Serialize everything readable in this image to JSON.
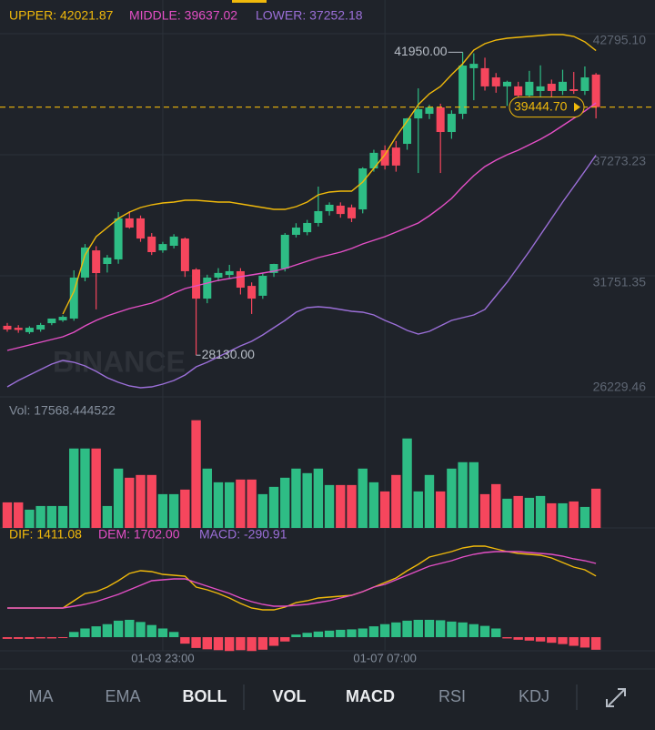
{
  "chart_data": [
    {
      "type": "candlestick",
      "up_color": "#2ebd85",
      "down_color": "#f6465d",
      "categories": [
        null,
        null,
        null,
        null,
        null,
        null,
        null,
        null,
        null,
        null,
        null,
        null,
        null,
        null,
        "01-03 23:00",
        null,
        null,
        null,
        null,
        null,
        null,
        null,
        null,
        null,
        null,
        null,
        null,
        null,
        null,
        null,
        null,
        null,
        null,
        null,
        "01-07 07:00",
        null,
        null,
        null,
        null,
        null,
        null,
        null,
        null,
        null,
        null,
        null,
        null,
        null,
        null,
        null,
        null,
        null,
        null,
        null
      ],
      "candles": [
        [
          29470,
          29600,
          29200,
          29300
        ],
        [
          29380,
          29500,
          29150,
          29280
        ],
        [
          29180,
          29450,
          29100,
          29380
        ],
        [
          29300,
          29600,
          29200,
          29510
        ],
        [
          29590,
          29800,
          29500,
          29800
        ],
        [
          29720,
          29950,
          29650,
          29880
        ],
        [
          29800,
          32000,
          29700,
          31670
        ],
        [
          31670,
          33200,
          31500,
          33040
        ],
        [
          32910,
          33100,
          30220,
          31875
        ],
        [
          32290,
          32700,
          31900,
          32580
        ],
        [
          32500,
          34660,
          32300,
          34370
        ],
        [
          34370,
          34700,
          33900,
          33950
        ],
        [
          34370,
          34500,
          33300,
          33450
        ],
        [
          33540,
          33700,
          32700,
          32830
        ],
        [
          32910,
          33300,
          32800,
          33200
        ],
        [
          33120,
          33650,
          33000,
          33540
        ],
        [
          33450,
          33500,
          31700,
          31960
        ],
        [
          32040,
          32100,
          28130,
          30710
        ],
        [
          30710,
          31800,
          30500,
          31670
        ],
        [
          31670,
          32100,
          31500,
          31880
        ],
        [
          31790,
          32250,
          31650,
          31960
        ],
        [
          31960,
          32100,
          30900,
          31210
        ],
        [
          31290,
          31450,
          30010,
          30710
        ],
        [
          30840,
          31900,
          30700,
          31750
        ],
        [
          31880,
          32300,
          31700,
          32290
        ],
        [
          32080,
          33700,
          31950,
          33620
        ],
        [
          33620,
          34150,
          33500,
          33950
        ],
        [
          33740,
          34300,
          33600,
          34160
        ],
        [
          34160,
          35820,
          34000,
          34700
        ],
        [
          34700,
          35100,
          34500,
          34990
        ],
        [
          34950,
          35100,
          34400,
          34570
        ],
        [
          34870,
          35000,
          34200,
          34370
        ],
        [
          34780,
          36700,
          34600,
          36650
        ],
        [
          36650,
          37500,
          36500,
          37360
        ],
        [
          37480,
          37700,
          36600,
          36780
        ],
        [
          37600,
          37900,
          36500,
          36780
        ],
        [
          37770,
          38950,
          37500,
          38930
        ],
        [
          38930,
          40300,
          36440,
          39350
        ],
        [
          39140,
          39550,
          38900,
          39430
        ],
        [
          39430,
          39600,
          36440,
          38310
        ],
        [
          38310,
          39300,
          38000,
          39140
        ],
        [
          39140,
          41950,
          38900,
          41340
        ],
        [
          41220,
          41900,
          39760,
          41420
        ],
        [
          41220,
          41700,
          40200,
          40390
        ],
        [
          40800,
          41000,
          40100,
          40390
        ],
        [
          40390,
          40650,
          39500,
          40600
        ],
        [
          40390,
          40600,
          39700,
          39970
        ],
        [
          39970,
          41100,
          39600,
          40600
        ],
        [
          40180,
          41350,
          39900,
          40390
        ],
        [
          40510,
          40700,
          39900,
          40180
        ],
        [
          40180,
          41150,
          40000,
          40600
        ],
        [
          40260,
          41050,
          40050,
          40180
        ],
        [
          40180,
          41300,
          40000,
          40800
        ],
        [
          40930,
          41000,
          38930,
          39444.7
        ]
      ],
      "series": [
        {
          "name": "UPPER: 42021.87",
          "color": "#f0b90b",
          "values": [
            null,
            null,
            null,
            null,
            null,
            30007,
            31045,
            32706,
            33536,
            33951,
            34366,
            34657,
            34865,
            34990,
            35073,
            35114,
            35197,
            35197,
            35155,
            35114,
            35114,
            35031,
            34948,
            34865,
            34782,
            34782,
            34907,
            35114,
            35446,
            35570,
            35612,
            35612,
            36027,
            36650,
            37273,
            38103,
            38809,
            39556,
            40055,
            40387,
            40927,
            41425,
            42048,
            42338,
            42504,
            42587,
            42629,
            42671,
            42712,
            42753,
            42753,
            42671,
            42421,
            42021.87
          ]
        },
        {
          "name": "MIDDLE: 39637.02",
          "color": "#e44fc6",
          "values": [
            28346,
            28471,
            28595,
            28720,
            28844,
            28969,
            29176,
            29467,
            29716,
            29924,
            30090,
            30256,
            30381,
            30505,
            30713,
            30962,
            31169,
            31294,
            31419,
            31543,
            31626,
            31709,
            31792,
            31875,
            31958,
            32083,
            32249,
            32415,
            32581,
            32706,
            32830,
            32996,
            33204,
            33370,
            33536,
            33744,
            33951,
            34159,
            34491,
            34865,
            35280,
            35820,
            36318,
            36733,
            37024,
            37273,
            37481,
            37730,
            37979,
            38270,
            38602,
            38934,
            39266,
            39637.02
          ]
        },
        {
          "name": "LOWER: 37252.18",
          "color": "#9b6fd8",
          "values": [
            26685,
            26976,
            27225,
            27474,
            27723,
            27889,
            27806,
            27640,
            27391,
            27100,
            26893,
            26727,
            26644,
            26685,
            26810,
            26976,
            27225,
            27598,
            27806,
            28056,
            28305,
            28554,
            28761,
            29052,
            29384,
            29716,
            30090,
            30298,
            30339,
            30298,
            30215,
            30132,
            30090,
            29965,
            29716,
            29508,
            29259,
            29093,
            29218,
            29467,
            29716,
            29841,
            29965,
            30215,
            30837,
            31460,
            32166,
            32872,
            33620,
            34366,
            35114,
            35820,
            36525,
            37252.18
          ]
        }
      ],
      "ylim": [
        26187,
        44331
      ],
      "yticks": [
        {
          "value": 42795.1,
          "label": "42795.10"
        },
        37273.23,
        31751.35,
        26229.46
      ],
      "grid": true,
      "annotations": [
        {
          "value": 41950,
          "label": "41950.00"
        },
        {
          "value": 28130,
          "label": "28130.00"
        }
      ],
      "last_price": {
        "value": 39444.7,
        "label": "39444.70"
      },
      "watermark": "BINANCE"
    },
    {
      "type": "bar",
      "series": [
        {
          "name": "Vol: 17568.444522",
          "values": [
            11440,
            11440,
            8170,
            9810,
            9810,
            9810,
            35550,
            35550,
            35550,
            9810,
            26560,
            22470,
            23700,
            23700,
            15120,
            15120,
            17160,
            48210,
            26560,
            20430,
            20430,
            21660,
            21660,
            15120,
            18390,
            22470,
            26560,
            24520,
            26560,
            19200,
            19200,
            19200,
            26560,
            20430,
            16340,
            23700,
            40040,
            16340,
            23700,
            16340,
            26560,
            29420,
            29420,
            15120,
            19610,
            13080,
            14300,
            13480,
            14300,
            11030,
            11030,
            11850,
            9400,
            17568.444522
          ]
        }
      ],
      "ylim": [
        0,
        55000
      ]
    },
    {
      "type": "line",
      "up_color": "#2ebd85",
      "down_color": "#f6465d",
      "series": [
        {
          "name": "DIF: 1411.08",
          "color": "#f0b90b",
          "values": [
            672,
            672,
            672,
            672,
            672,
            672,
            840,
            1008,
            1050,
            1155,
            1302,
            1470,
            1533,
            1512,
            1449,
            1428,
            1407,
            1155,
            1092,
            1008,
            903,
            777,
            672,
            630,
            630,
            693,
            798,
            840,
            903,
            924,
            945,
            966,
            1050,
            1155,
            1260,
            1365,
            1533,
            1680,
            1848,
            1911,
            1974,
            2058,
            2100,
            2100,
            2037,
            1974,
            1932,
            1911,
            1890,
            1827,
            1722,
            1617,
            1554,
            1411.08
          ]
        },
        {
          "name": "DEM: 1702.00",
          "color": "#e44fc6",
          "values": [
            672,
            672,
            672,
            672,
            672,
            672,
            714,
            756,
            819,
            903,
            987,
            1092,
            1197,
            1302,
            1323,
            1344,
            1344,
            1260,
            1176,
            1092,
            1008,
            903,
            819,
            756,
            714,
            714,
            735,
            756,
            798,
            840,
            903,
            966,
            1050,
            1155,
            1218,
            1323,
            1428,
            1533,
            1638,
            1701,
            1764,
            1848,
            1911,
            1953,
            1974,
            1974,
            1974,
            1953,
            1932,
            1911,
            1869,
            1806,
            1764,
            1702
          ]
        },
        {
          "name": "MACD: -290.91",
          "color": "#9b6fd8",
          "type": "bar",
          "values": [
            -40,
            -40,
            -40,
            -30,
            -30,
            -20,
            120,
            200,
            250,
            300,
            380,
            400,
            350,
            280,
            200,
            120,
            -150,
            -250,
            -280,
            -300,
            -320,
            -300,
            -320,
            -290,
            -200,
            -100,
            60,
            100,
            130,
            150,
            170,
            180,
            200,
            250,
            300,
            340,
            380,
            400,
            400,
            390,
            360,
            340,
            300,
            260,
            200,
            -30,
            -60,
            -80,
            -100,
            -130,
            -160,
            -200,
            -240,
            -290.91
          ]
        }
      ],
      "ylim": [
        -315,
        2520
      ]
    }
  ],
  "tabs": [
    {
      "label": "MA",
      "active": false
    },
    {
      "label": "EMA",
      "active": false
    },
    {
      "label": "BOLL",
      "active": true
    },
    {
      "label": "VOL",
      "active": true
    },
    {
      "label": "MACD",
      "active": true
    },
    {
      "label": "RSI",
      "active": false
    },
    {
      "label": "KDJ",
      "active": false
    }
  ]
}
